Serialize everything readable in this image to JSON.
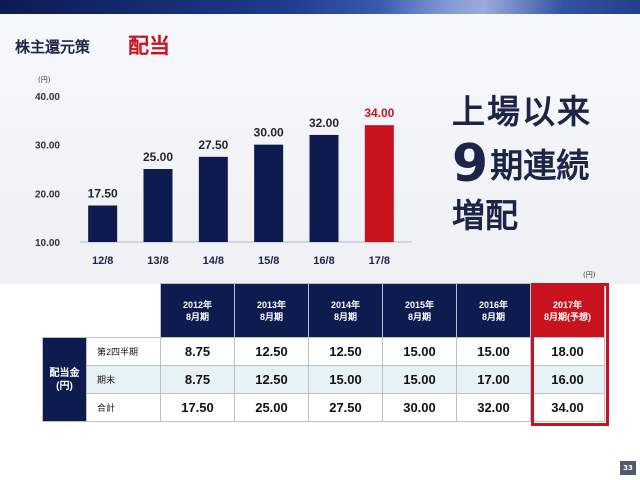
{
  "section": "株主還元策",
  "title": "配当",
  "chart_data": {
    "type": "bar",
    "unit": "(円)",
    "categories": [
      "12/8",
      "13/8",
      "14/8",
      "15/8",
      "16/8",
      "17/8"
    ],
    "values": [
      17.5,
      25.0,
      27.5,
      30.0,
      32.0,
      34.0
    ],
    "value_labels": [
      "17.50",
      "25.00",
      "27.50",
      "30.00",
      "32.00",
      "34.00"
    ],
    "yticks": [
      "40.00",
      "30.00",
      "20.00",
      "10.00"
    ],
    "ylim": [
      10,
      40
    ],
    "grid": false,
    "colors": {
      "bar": "#0d1b4f",
      "highlight": "#c8121e"
    },
    "highlight_index": 5
  },
  "headline": {
    "line1": "上場以来",
    "count": "9",
    "line2_rest": "期連続",
    "line3": "増配"
  },
  "table": {
    "unit": "(円)",
    "row_header": "配当金\n(円)",
    "columns": [
      [
        "2012年",
        "8月期"
      ],
      [
        "2013年",
        "8月期"
      ],
      [
        "2014年",
        "8月期"
      ],
      [
        "2015年",
        "8月期"
      ],
      [
        "2016年",
        "8月期"
      ],
      [
        "2017年",
        "8月期(予想)"
      ]
    ],
    "rows": [
      {
        "label": "第2四半期",
        "values": [
          "8.75",
          "12.50",
          "12.50",
          "15.00",
          "15.00",
          "18.00"
        ]
      },
      {
        "label": "期末",
        "values": [
          "8.75",
          "12.50",
          "15.00",
          "15.00",
          "17.00",
          "16.00"
        ]
      },
      {
        "label": "合計",
        "values": [
          "17.50",
          "25.00",
          "27.50",
          "30.00",
          "32.00",
          "34.00"
        ]
      }
    ]
  },
  "page_number": "33"
}
